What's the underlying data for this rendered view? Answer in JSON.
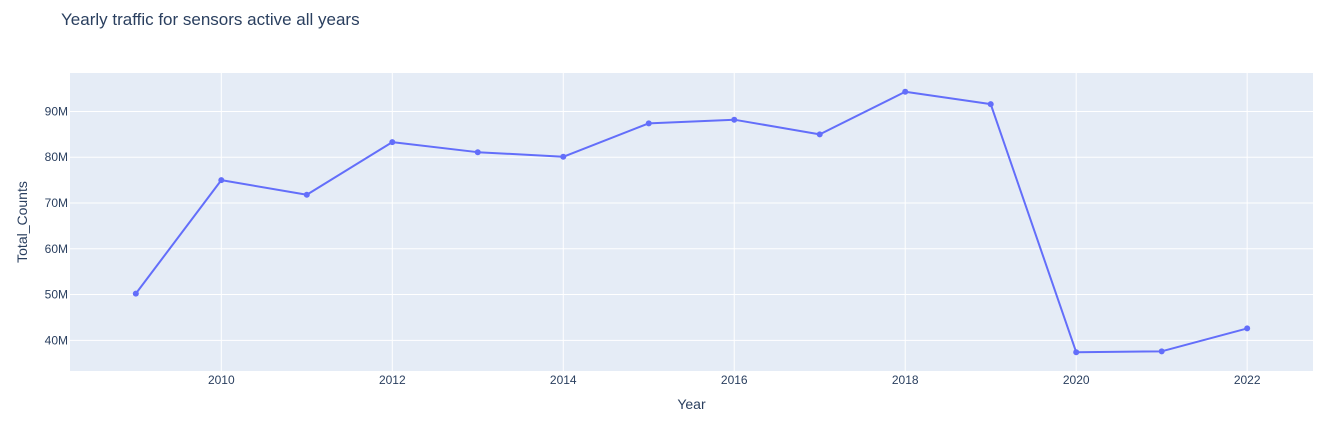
{
  "chart_data": {
    "type": "line",
    "title": "Yearly traffic for sensors active all years",
    "xlabel": "Year",
    "ylabel": "Total_Counts",
    "x": [
      2009,
      2010,
      2011,
      2012,
      2013,
      2014,
      2015,
      2016,
      2017,
      2018,
      2019,
      2020,
      2021,
      2022
    ],
    "series": [
      {
        "values": [
          50.2,
          75.0,
          71.8,
          83.3,
          81.1,
          80.1,
          87.4,
          88.2,
          85.0,
          94.3,
          91.6,
          37.4,
          37.6,
          42.6
        ]
      }
    ],
    "xticks": [
      "2010",
      "2012",
      "2014",
      "2016",
      "2018",
      "2020",
      "2022"
    ],
    "yticks": [
      "40M",
      "50M",
      "60M",
      "70M",
      "80M",
      "90M"
    ],
    "xlim": [
      2008.23,
      2022.77
    ],
    "ylim": [
      33.3,
      98.4
    ],
    "grid": true,
    "colors": {
      "line": "#636efa",
      "plot_bg": "#e5ecf6",
      "grid": "#ffffff",
      "text": "#2a3f5f"
    }
  }
}
